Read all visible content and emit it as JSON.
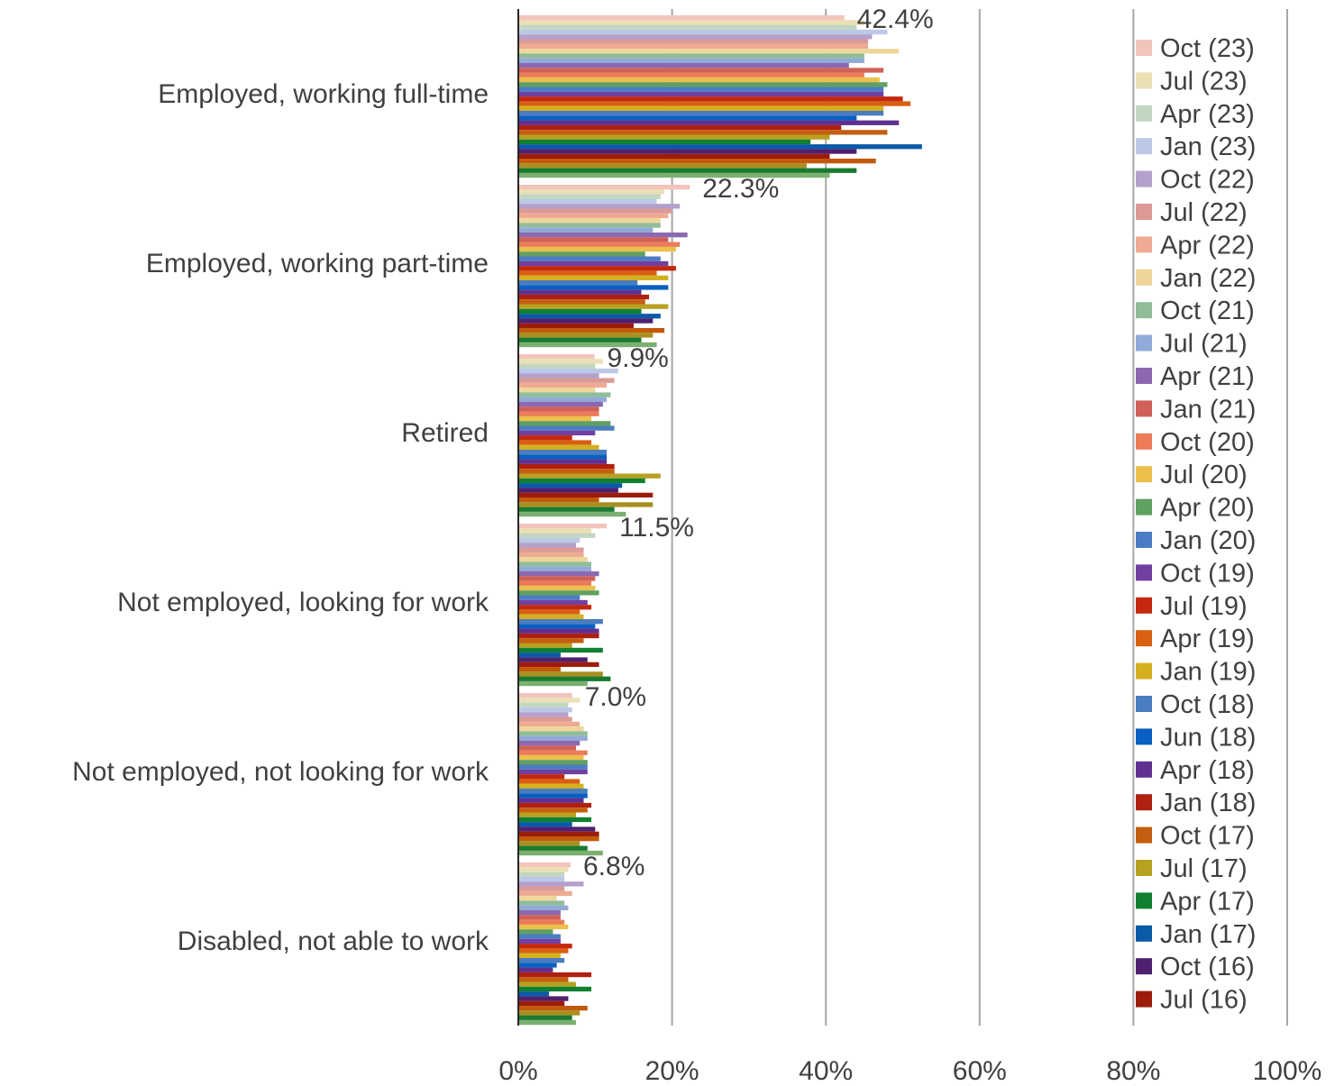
{
  "chart_data": {
    "type": "bar",
    "orientation": "horizontal",
    "categories": [
      "Employed, working full-time",
      "Employed, working part-time",
      "Retired",
      "Not employed, looking for work",
      "Not employed, not looking for work",
      "Disabled, not able to work"
    ],
    "xlim": [
      0,
      100
    ],
    "x_ticks": [
      "0%",
      "20%",
      "40%",
      "60%",
      "80%",
      "100%"
    ],
    "grid": true,
    "legend_position": "right",
    "series": [
      {
        "name": "Oct (23)",
        "color": "#f2c4bc",
        "values": [
          42.4,
          22.3,
          9.9,
          11.5,
          7.0,
          6.8
        ]
      },
      {
        "name": "Jul (23)",
        "color": "#ebdfb4",
        "values": [
          45,
          19,
          11,
          9.5,
          8,
          6.5
        ]
      },
      {
        "name": "Apr (23)",
        "color": "#c2d6c2",
        "values": [
          44,
          18.5,
          10,
          10,
          6.5,
          6
        ]
      },
      {
        "name": "Jan (23)",
        "color": "#bcc8e6",
        "values": [
          48,
          18,
          13,
          8,
          7,
          6
        ]
      },
      {
        "name": "Oct (22)",
        "color": "#b4a0cc",
        "values": [
          46,
          21,
          10.5,
          7.5,
          6.5,
          8.5
        ]
      },
      {
        "name": "Jul (22)",
        "color": "#dc9a96",
        "values": [
          45.5,
          20,
          12.5,
          8.5,
          7,
          6
        ]
      },
      {
        "name": "Apr (22)",
        "color": "#eeaa92",
        "values": [
          45.5,
          19.5,
          11.5,
          8.5,
          8,
          7
        ]
      },
      {
        "name": "Jan (22)",
        "color": "#eed69a",
        "values": [
          49.5,
          18.5,
          10,
          9,
          8.5,
          5
        ]
      },
      {
        "name": "Oct (21)",
        "color": "#90bc9a",
        "values": [
          45,
          18.5,
          12,
          9.5,
          9,
          6
        ]
      },
      {
        "name": "Jul (21)",
        "color": "#92aad8",
        "values": [
          45,
          17.5,
          11.5,
          9.5,
          9,
          6.5
        ]
      },
      {
        "name": "Apr (21)",
        "color": "#8c68b0",
        "values": [
          43,
          22,
          11,
          10.5,
          8,
          5.5
        ]
      },
      {
        "name": "Jan (21)",
        "color": "#d06058",
        "values": [
          47.5,
          19.5,
          10.5,
          10,
          7.5,
          5.5
        ]
      },
      {
        "name": "Oct (20)",
        "color": "#ec7c58",
        "values": [
          45,
          21,
          10.5,
          9.5,
          9,
          6
        ]
      },
      {
        "name": "Jul (20)",
        "color": "#ecc04c",
        "values": [
          47,
          20.5,
          9.5,
          10,
          8.5,
          6.5
        ]
      },
      {
        "name": "Apr (20)",
        "color": "#60a060",
        "values": [
          48,
          16.5,
          12,
          10.5,
          9,
          4.5
        ]
      },
      {
        "name": "Jan (20)",
        "color": "#4c7cc4",
        "values": [
          47.5,
          18.5,
          12.5,
          8,
          9,
          5.5
        ]
      },
      {
        "name": "Oct (19)",
        "color": "#7040a0",
        "values": [
          47.5,
          19.5,
          10,
          9,
          9,
          5.5
        ]
      },
      {
        "name": "Jul (19)",
        "color": "#c42810",
        "values": [
          50,
          20.5,
          7,
          9.5,
          6,
          7
        ]
      },
      {
        "name": "Apr (19)",
        "color": "#d86010",
        "values": [
          51,
          18,
          9.5,
          8,
          8,
          6.5
        ]
      },
      {
        "name": "Jan (19)",
        "color": "#d4b020",
        "values": [
          47.5,
          19.5,
          10.5,
          8.5,
          8.5,
          5.5
        ]
      },
      {
        "name": "Oct (18)",
        "color": "#4a7cc0",
        "values": [
          47.5,
          15.5,
          11.5,
          11,
          9,
          6
        ]
      },
      {
        "name": "Jun (18)",
        "color": "#0a60c0",
        "values": [
          44,
          19.5,
          11.5,
          10,
          9,
          5
        ]
      },
      {
        "name": "Apr (18)",
        "color": "#603090",
        "values": [
          49.5,
          16,
          11.5,
          10.5,
          8.5,
          4.5
        ]
      },
      {
        "name": "Jan (18)",
        "color": "#b02010",
        "values": [
          42,
          17,
          12.5,
          10.5,
          9.5,
          9.5
        ]
      },
      {
        "name": "Oct (17)",
        "color": "#c45e10",
        "values": [
          48,
          16.5,
          12.5,
          8.5,
          9,
          6.5
        ]
      },
      {
        "name": "Jul (17)",
        "color": "#b8a020",
        "values": [
          40.5,
          19.5,
          18.5,
          7,
          7.5,
          7.5
        ]
      },
      {
        "name": "Apr (17)",
        "color": "#108030",
        "values": [
          38,
          16,
          16.5,
          11,
          9.5,
          9.5
        ]
      },
      {
        "name": "Jan (17)",
        "color": "#0a5aa8",
        "values": [
          52.5,
          18.5,
          13.5,
          5.5,
          7,
          4
        ]
      },
      {
        "name": "Oct (16)",
        "color": "#502070",
        "values": [
          44,
          17.5,
          13,
          9,
          10,
          6.5
        ]
      },
      {
        "name": "Jul (16)",
        "color": "#9c1c0c",
        "values": [
          40.5,
          15,
          17.5,
          10.5,
          10.5,
          6
        ]
      },
      {
        "name": "",
        "color": "#c25a0c",
        "values": [
          46.5,
          19,
          10.5,
          5.5,
          10.5,
          9
        ]
      },
      {
        "name": "",
        "color": "#a89020",
        "values": [
          37.5,
          17.5,
          17.5,
          11,
          8,
          8
        ]
      },
      {
        "name": "",
        "color": "#1a7a30",
        "values": [
          44,
          16,
          12.5,
          12,
          9,
          7
        ]
      },
      {
        "name": "",
        "color": "#7cb070",
        "values": [
          40.5,
          18,
          14,
          9,
          11,
          7.5
        ]
      }
    ],
    "data_labels": [
      "42.4%",
      "22.3%",
      "9.9%",
      "11.5%",
      "7.0%",
      "6.8%"
    ]
  }
}
